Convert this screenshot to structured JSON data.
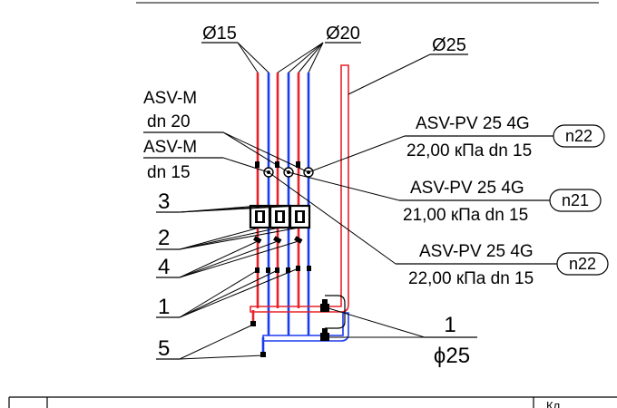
{
  "colors": {
    "supply": "#e8222a",
    "return": "#1a3cf0",
    "line": "#000000"
  },
  "labels": {
    "d15": "Ø15",
    "d20": "Ø20",
    "d25": "Ø25",
    "asvm1_line1": "ASV-M",
    "asvm1_line2": "dn 20",
    "asvm2_line1": "ASV-M",
    "asvm2_line2": "dn 15",
    "num3": "3",
    "num2": "2",
    "num4": "4",
    "num1_left": "1",
    "num5": "5",
    "num1_right": "1",
    "phi25": "ϕ25"
  },
  "valves": [
    {
      "title": "ASV-PV 25 4G",
      "detail": "22,00 кПа dn 15",
      "tag": "n22"
    },
    {
      "title": "ASV-PV 25 4G",
      "detail": "21,00 кПа dn 15",
      "tag": "n21"
    },
    {
      "title": "ASV-PV 25 4G",
      "detail": "22,00 кПа dn 15",
      "tag": "n22"
    }
  ],
  "title_block": {
    "corner_text": "Кл ."
  }
}
